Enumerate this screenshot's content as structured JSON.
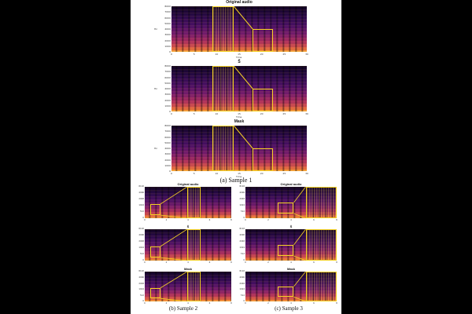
{
  "figure": {
    "sample1": {
      "caption": "(a) Sample 1",
      "panels": [
        {
          "title": "Original audio"
        },
        {
          "title": "Ŝ"
        },
        {
          "title": "Mask"
        }
      ],
      "y_ticks": [
        "8000",
        "7000",
        "6000",
        "5000",
        "4000",
        "3000",
        "2000",
        "1000",
        "0"
      ],
      "x_ticks": [
        "0",
        "5",
        "10",
        "15",
        "20",
        "25",
        "30"
      ],
      "y_label": "Hz",
      "x_label": "Time"
    },
    "sample2": {
      "caption": "(b) Sample 2",
      "panels": [
        {
          "title": "Original audio"
        },
        {
          "title": "Ŝ"
        },
        {
          "title": "Mask"
        }
      ],
      "y_ticks": [
        "8192",
        "4096",
        "2048",
        "1024",
        "512",
        "0"
      ],
      "x_ticks": [
        "0",
        "2",
        "4",
        "6",
        "8"
      ]
    },
    "sample3": {
      "caption": "(c) Sample 3",
      "panels": [
        {
          "title": "Original audio"
        },
        {
          "title": "Ŝ"
        },
        {
          "title": "Mask"
        }
      ],
      "y_ticks": [
        "8192",
        "4096",
        "2048",
        "1024",
        "512",
        "0"
      ],
      "x_ticks": [
        "0",
        "2",
        "4",
        "6",
        "8"
      ]
    }
  },
  "colors": {
    "highlight": "#f5d224",
    "colormap": "magma"
  }
}
